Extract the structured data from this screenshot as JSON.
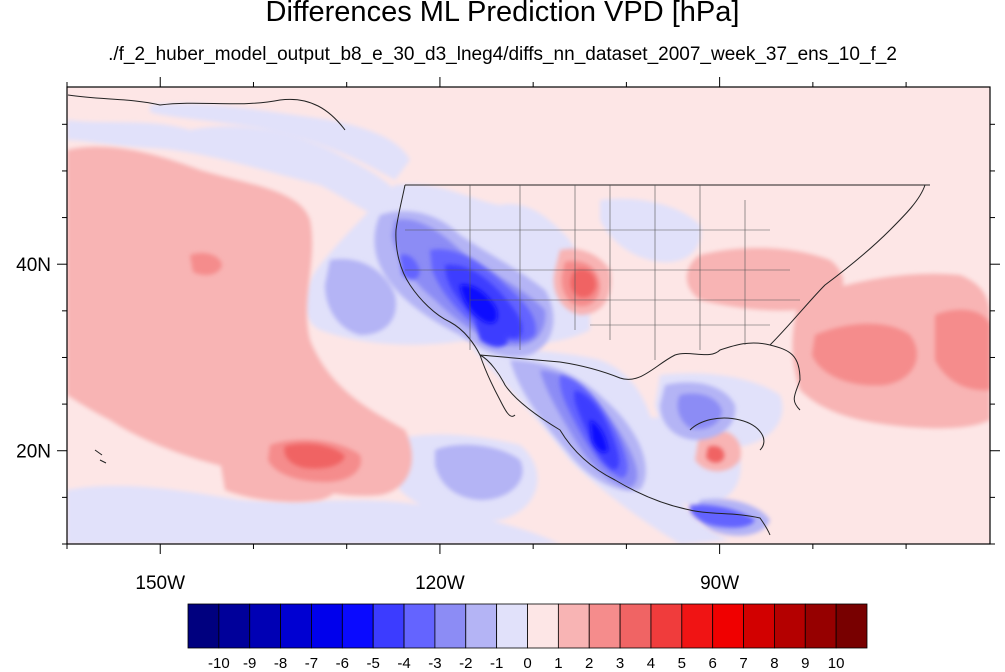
{
  "title": "Differences ML Prediction VPD [hPa]",
  "subtitle": "./f_2_huber_model_output_b8_e_30_d3_lneg4/diffs_nn_dataset_2007_week_37_ens_10_f_2",
  "map": {
    "lon_range": [
      -160,
      -61
    ],
    "lat_range": [
      10,
      59
    ],
    "lon_ticks": [
      {
        "value": -150,
        "label": "150W"
      },
      {
        "value": -120,
        "label": "120W"
      },
      {
        "value": -90,
        "label": "90W"
      }
    ],
    "lat_ticks": [
      {
        "value": 40,
        "label": "40N"
      },
      {
        "value": 20,
        "label": "20N"
      }
    ],
    "background_color": "#fde6e6"
  },
  "colorbar": {
    "labels": [
      "-10",
      "-9",
      "-8",
      "-7",
      "-6",
      "-5",
      "-4",
      "-3",
      "-2",
      "-1",
      "0",
      "1",
      "2",
      "3",
      "4",
      "5",
      "6",
      "7",
      "8",
      "9",
      "10"
    ],
    "colors": [
      "#00007f",
      "#00009a",
      "#0000b4",
      "#0000d2",
      "#0000ec",
      "#0a0aff",
      "#3c3cff",
      "#6464ff",
      "#8c8cf5",
      "#b4b4f5",
      "#e1e1fa",
      "#fde6e6",
      "#f8b4b4",
      "#f58c8c",
      "#f06464",
      "#f03c3c",
      "#f01414",
      "#f00000",
      "#d20000",
      "#b40000",
      "#960000",
      "#780000"
    ]
  },
  "chart_data": {
    "type": "contour map",
    "variable": "VPD difference",
    "unit": "hPa",
    "levels": [
      -10,
      -9,
      -8,
      -7,
      -6,
      -5,
      -4,
      -3,
      -2,
      -1,
      0,
      1,
      2,
      3,
      4,
      5,
      6,
      7,
      8,
      9,
      10
    ],
    "features": [
      {
        "lon": -144,
        "lat": 34,
        "approx_value": 2
      },
      {
        "lon": -135,
        "lat": 20,
        "approx_value": 3
      },
      {
        "lon": -113,
        "lat": 36,
        "approx_value": -5
      },
      {
        "lon": -103,
        "lat": 22,
        "approx_value": -5
      },
      {
        "lon": -108,
        "lat": 18,
        "approx_value": -2
      },
      {
        "lon": -140,
        "lat": 17,
        "approx_value": -2
      },
      {
        "lon": -91,
        "lat": 25,
        "approx_value": -2
      },
      {
        "lon": -93,
        "lat": 14,
        "approx_value": -4
      },
      {
        "lon": -104,
        "lat": 39,
        "approx_value": 3
      },
      {
        "lon": -70,
        "lat": 33,
        "approx_value": 3
      },
      {
        "lon": -90,
        "lat": 21,
        "approx_value": 4
      }
    ]
  }
}
